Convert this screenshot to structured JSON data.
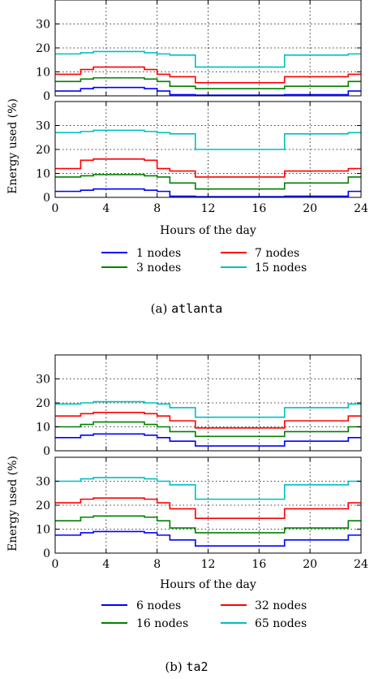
{
  "figures": [
    {
      "caption_prefix": "(a)",
      "caption_name": "atlanta",
      "xlabel": "Hours of the day",
      "ylabel": "Energy used (%)",
      "xticks": [
        "0",
        "4",
        "8",
        "12",
        "16",
        "20",
        "24"
      ],
      "yticks": [
        "0",
        "10",
        "20",
        "30"
      ],
      "legend": [
        "1 nodes",
        "7 nodes",
        "3 nodes",
        "15 nodes"
      ]
    },
    {
      "caption_prefix": "(b)",
      "caption_name": "ta2",
      "xlabel": "Hours of the day",
      "ylabel": "Energy used (%)",
      "xticks": [
        "0",
        "4",
        "8",
        "12",
        "16",
        "20",
        "24"
      ],
      "yticks": [
        "0",
        "10",
        "20",
        "30"
      ],
      "legend": [
        "6 nodes",
        "32 nodes",
        "16 nodes",
        "65 nodes"
      ]
    }
  ],
  "colors": {
    "blue": "#0000ff",
    "green": "#008000",
    "red": "#ff0000",
    "cyan": "#00bfbf"
  },
  "chart_data": [
    {
      "type": "line",
      "figure": "atlanta",
      "panel": "top",
      "x": [
        0,
        1,
        2,
        3,
        4,
        5,
        6,
        7,
        8,
        9,
        10,
        11,
        12,
        13,
        14,
        15,
        16,
        17,
        18,
        19,
        20,
        21,
        22,
        23,
        24
      ],
      "xlim": [
        0,
        24
      ],
      "ylim": [
        0,
        40
      ],
      "grid": true,
      "step": "post",
      "series": [
        {
          "name": "1 nodes",
          "color": "blue",
          "values": [
            2,
            2,
            3,
            3.5,
            3.5,
            3.5,
            3.5,
            3,
            2,
            0.5,
            0.5,
            0.3,
            0.3,
            0.3,
            0.3,
            0.3,
            0.3,
            0.3,
            0.5,
            0.5,
            0.5,
            0.5,
            0.5,
            2,
            2
          ]
        },
        {
          "name": "3 nodes",
          "color": "green",
          "values": [
            6,
            6,
            7,
            7.5,
            7.5,
            7.5,
            7.5,
            7,
            6,
            4,
            4,
            3,
            3,
            3,
            3,
            3,
            3,
            3,
            4,
            4,
            4,
            4,
            4,
            6,
            6
          ]
        },
        {
          "name": "7 nodes",
          "color": "red",
          "values": [
            9,
            9,
            11,
            12,
            12,
            12,
            12,
            11,
            9,
            8,
            8,
            5.5,
            5.5,
            5.5,
            5.5,
            5.5,
            5.5,
            5.5,
            8,
            8,
            8,
            8,
            8,
            9,
            9
          ]
        },
        {
          "name": "15 nodes",
          "color": "cyan",
          "values": [
            17.5,
            17.5,
            18,
            18.5,
            18.5,
            18.5,
            18.5,
            18,
            17.5,
            17,
            17,
            12,
            12,
            12,
            12,
            12,
            12,
            12,
            17,
            17,
            17,
            17,
            17,
            17.5,
            17.5
          ]
        }
      ]
    },
    {
      "type": "line",
      "figure": "atlanta",
      "panel": "bottom",
      "x": [
        0,
        1,
        2,
        3,
        4,
        5,
        6,
        7,
        8,
        9,
        10,
        11,
        12,
        13,
        14,
        15,
        16,
        17,
        18,
        19,
        20,
        21,
        22,
        23,
        24
      ],
      "xlim": [
        0,
        24
      ],
      "ylim": [
        0,
        40
      ],
      "grid": true,
      "step": "post",
      "series": [
        {
          "name": "1 nodes",
          "color": "blue",
          "values": [
            2.5,
            2.5,
            3,
            3.5,
            3.5,
            3.5,
            3.5,
            3,
            2.5,
            0.5,
            0.5,
            0.3,
            0.3,
            0.3,
            0.3,
            0.3,
            0.3,
            0.3,
            0.5,
            0.5,
            0.5,
            0.5,
            0.5,
            2.5,
            2.5
          ]
        },
        {
          "name": "3 nodes",
          "color": "green",
          "values": [
            8.5,
            8.5,
            9,
            9.5,
            9.5,
            9.5,
            9.5,
            9,
            8.5,
            6,
            6,
            3.5,
            3.5,
            3.5,
            3.5,
            3.5,
            3.5,
            3.5,
            6,
            6,
            6,
            6,
            6,
            8.5,
            8.5
          ]
        },
        {
          "name": "7 nodes",
          "color": "red",
          "values": [
            12,
            12,
            15.5,
            16,
            16,
            16,
            16,
            15.5,
            12,
            11,
            11,
            8.5,
            8.5,
            8.5,
            8.5,
            8.5,
            8.5,
            8.5,
            11,
            11,
            11,
            11,
            11,
            12,
            12
          ]
        },
        {
          "name": "15 nodes",
          "color": "cyan",
          "values": [
            27,
            27,
            27.5,
            28,
            28,
            28,
            28,
            27.5,
            27,
            26.5,
            26.5,
            20,
            20,
            20,
            20,
            20,
            20,
            20,
            26.5,
            26.5,
            26.5,
            26.5,
            26.5,
            27,
            27
          ]
        }
      ]
    },
    {
      "type": "line",
      "figure": "ta2",
      "panel": "top",
      "x": [
        0,
        1,
        2,
        3,
        4,
        5,
        6,
        7,
        8,
        9,
        10,
        11,
        12,
        13,
        14,
        15,
        16,
        17,
        18,
        19,
        20,
        21,
        22,
        23,
        24
      ],
      "xlim": [
        0,
        24
      ],
      "ylim": [
        0,
        40
      ],
      "grid": true,
      "step": "post",
      "series": [
        {
          "name": "6 nodes",
          "color": "blue",
          "values": [
            5.5,
            5.5,
            6.5,
            7,
            7,
            7,
            7,
            6.5,
            5.5,
            4,
            4,
            2,
            2,
            2,
            2,
            2,
            2,
            2,
            4,
            4,
            4,
            4,
            4,
            5.5,
            5.5
          ]
        },
        {
          "name": "16 nodes",
          "color": "green",
          "values": [
            10,
            10,
            11,
            12,
            12,
            12,
            12,
            11,
            10,
            8,
            8,
            6,
            6,
            6,
            6,
            6,
            6,
            6,
            8,
            8,
            8,
            8,
            8,
            10,
            10
          ]
        },
        {
          "name": "32 nodes",
          "color": "red",
          "values": [
            14.5,
            14.5,
            15.5,
            16,
            16,
            16,
            16,
            15.5,
            14.5,
            12.5,
            12.5,
            9.5,
            9.5,
            9.5,
            9.5,
            9.5,
            9.5,
            9.5,
            12.5,
            12.5,
            12.5,
            12.5,
            12.5,
            14.5,
            14.5
          ]
        },
        {
          "name": "65 nodes",
          "color": "cyan",
          "values": [
            19.5,
            19.5,
            20,
            20.5,
            20.5,
            20.5,
            20.5,
            20,
            19.5,
            18,
            18,
            14,
            14,
            14,
            14,
            14,
            14,
            14,
            18,
            18,
            18,
            18,
            18,
            19.5,
            19.5
          ]
        }
      ]
    },
    {
      "type": "line",
      "figure": "ta2",
      "panel": "bottom",
      "x": [
        0,
        1,
        2,
        3,
        4,
        5,
        6,
        7,
        8,
        9,
        10,
        11,
        12,
        13,
        14,
        15,
        16,
        17,
        18,
        19,
        20,
        21,
        22,
        23,
        24
      ],
      "xlim": [
        0,
        24
      ],
      "ylim": [
        0,
        40
      ],
      "grid": true,
      "step": "post",
      "series": [
        {
          "name": "6 nodes",
          "color": "blue",
          "values": [
            7.5,
            7.5,
            8.5,
            9,
            9,
            9,
            9,
            8.5,
            7.5,
            5.5,
            5.5,
            3,
            3,
            3,
            3,
            3,
            3,
            3,
            5.5,
            5.5,
            5.5,
            5.5,
            5.5,
            7.5,
            7.5
          ]
        },
        {
          "name": "16 nodes",
          "color": "green",
          "values": [
            13.5,
            13.5,
            15,
            15.5,
            15.5,
            15.5,
            15.5,
            15,
            13.5,
            10.5,
            10.5,
            8.5,
            8.5,
            8.5,
            8.5,
            8.5,
            8.5,
            8.5,
            10.5,
            10.5,
            10.5,
            10.5,
            10.5,
            13.5,
            13.5
          ]
        },
        {
          "name": "32 nodes",
          "color": "red",
          "values": [
            21,
            21,
            22.5,
            23,
            23,
            23,
            23,
            22.5,
            21,
            18.5,
            18.5,
            14.5,
            14.5,
            14.5,
            14.5,
            14.5,
            14.5,
            14.5,
            18.5,
            18.5,
            18.5,
            18.5,
            18.5,
            21,
            21
          ]
        },
        {
          "name": "65 nodes",
          "color": "cyan",
          "values": [
            30,
            30,
            31,
            31.5,
            31.5,
            31.5,
            31.5,
            31,
            30,
            28.5,
            28.5,
            22.5,
            22.5,
            22.5,
            22.5,
            22.5,
            22.5,
            22.5,
            28.5,
            28.5,
            28.5,
            28.5,
            28.5,
            30,
            30
          ]
        }
      ]
    }
  ]
}
